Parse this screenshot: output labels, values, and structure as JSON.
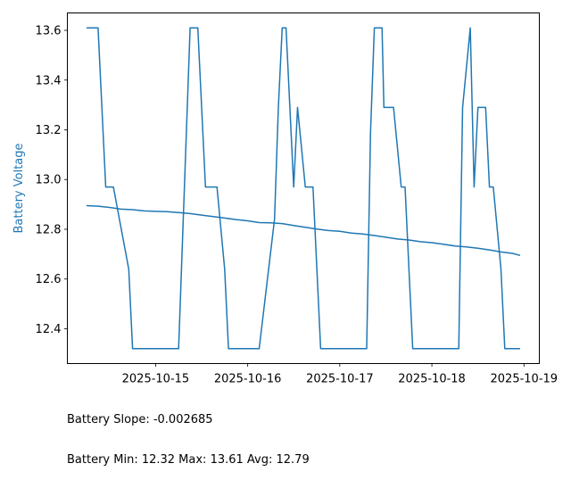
{
  "chart_data": {
    "type": "line",
    "title": "",
    "xlabel": "",
    "ylabel": "Battery Voltage",
    "ylabel_color": "#1f77b4",
    "x_ticks": [
      "2025-10-15",
      "2025-10-16",
      "2025-10-17",
      "2025-10-18",
      "2025-10-19"
    ],
    "y_ticks": [
      "12.4",
      "12.6",
      "12.8",
      "13.0",
      "13.2",
      "13.4",
      "13.6"
    ],
    "ylim": [
      12.26,
      13.67
    ],
    "xlim": [
      "2025-10-14 01:00",
      "2025-10-19 04:00"
    ],
    "grid": false,
    "series": [
      {
        "color": "#1f77b4",
        "points": [
          [
            "2025-10-14 06:00",
            13.61
          ],
          [
            "2025-10-14 09:00",
            13.61
          ],
          [
            "2025-10-14 11:00",
            12.97
          ],
          [
            "2025-10-14 13:00",
            12.97
          ],
          [
            "2025-10-14 17:00",
            12.64
          ],
          [
            "2025-10-14 18:00",
            12.32
          ],
          [
            "2025-10-15 06:00",
            12.32
          ],
          [
            "2025-10-15 09:00",
            13.61
          ],
          [
            "2025-10-15 11:00",
            13.61
          ],
          [
            "2025-10-15 13:00",
            12.97
          ],
          [
            "2025-10-15 16:00",
            12.97
          ],
          [
            "2025-10-15 18:00",
            12.64
          ],
          [
            "2025-10-15 19:00",
            12.32
          ],
          [
            "2025-10-16 03:00",
            12.32
          ],
          [
            "2025-10-16 07:00",
            12.84
          ],
          [
            "2025-10-16 08:00",
            13.29
          ],
          [
            "2025-10-16 09:00",
            13.61
          ],
          [
            "2025-10-16 10:00",
            13.61
          ],
          [
            "2025-10-16 12:00",
            12.97
          ],
          [
            "2025-10-16 13:00",
            13.29
          ],
          [
            "2025-10-16 15:00",
            12.97
          ],
          [
            "2025-10-16 17:00",
            12.97
          ],
          [
            "2025-10-16 19:00",
            12.32
          ],
          [
            "2025-10-17 07:00",
            12.32
          ],
          [
            "2025-10-17 08:00",
            13.19
          ],
          [
            "2025-10-17 09:00",
            13.61
          ],
          [
            "2025-10-17 11:00",
            13.61
          ],
          [
            "2025-10-17 11:30",
            13.29
          ],
          [
            "2025-10-17 14:00",
            13.29
          ],
          [
            "2025-10-17 16:00",
            12.97
          ],
          [
            "2025-10-17 17:00",
            12.97
          ],
          [
            "2025-10-17 19:00",
            12.32
          ],
          [
            "2025-10-18 07:00",
            12.32
          ],
          [
            "2025-10-18 08:00",
            13.29
          ],
          [
            "2025-10-18 10:00",
            13.61
          ],
          [
            "2025-10-18 11:00",
            12.97
          ],
          [
            "2025-10-18 12:00",
            13.29
          ],
          [
            "2025-10-18 14:00",
            13.29
          ],
          [
            "2025-10-18 15:00",
            12.97
          ],
          [
            "2025-10-18 16:00",
            12.97
          ],
          [
            "2025-10-18 18:00",
            12.64
          ],
          [
            "2025-10-18 19:00",
            12.32
          ],
          [
            "2025-10-18 23:00",
            12.32
          ]
        ]
      },
      {
        "color": "#1f77b4",
        "points": [
          [
            "2025-10-14 06:00",
            12.895
          ],
          [
            "2025-10-14 09:00",
            12.893
          ],
          [
            "2025-10-14 12:00",
            12.888
          ],
          [
            "2025-10-14 15:00",
            12.881
          ],
          [
            "2025-10-14 18:00",
            12.879
          ],
          [
            "2025-10-14 21:00",
            12.874
          ],
          [
            "2025-10-15 00:00",
            12.872
          ],
          [
            "2025-10-15 03:00",
            12.871
          ],
          [
            "2025-10-15 06:00",
            12.867
          ],
          [
            "2025-10-15 09:00",
            12.863
          ],
          [
            "2025-10-15 12:00",
            12.857
          ],
          [
            "2025-10-15 15:00",
            12.851
          ],
          [
            "2025-10-15 18:00",
            12.845
          ],
          [
            "2025-10-15 21:00",
            12.839
          ],
          [
            "2025-10-16 00:00",
            12.834
          ],
          [
            "2025-10-16 03:00",
            12.827
          ],
          [
            "2025-10-16 06:00",
            12.826
          ],
          [
            "2025-10-16 09:00",
            12.823
          ],
          [
            "2025-10-16 12:00",
            12.815
          ],
          [
            "2025-10-16 15:00",
            12.808
          ],
          [
            "2025-10-16 18:00",
            12.801
          ],
          [
            "2025-10-16 21:00",
            12.795
          ],
          [
            "2025-10-17 00:00",
            12.792
          ],
          [
            "2025-10-17 03:00",
            12.785
          ],
          [
            "2025-10-17 06:00",
            12.781
          ],
          [
            "2025-10-17 09:00",
            12.775
          ],
          [
            "2025-10-17 12:00",
            12.768
          ],
          [
            "2025-10-17 15:00",
            12.761
          ],
          [
            "2025-10-17 18:00",
            12.757
          ],
          [
            "2025-10-17 21:00",
            12.75
          ],
          [
            "2025-10-18 00:00",
            12.746
          ],
          [
            "2025-10-18 03:00",
            12.74
          ],
          [
            "2025-10-18 06:00",
            12.733
          ],
          [
            "2025-10-18 09:00",
            12.729
          ],
          [
            "2025-10-18 12:00",
            12.724
          ],
          [
            "2025-10-18 15:00",
            12.717
          ],
          [
            "2025-10-18 18:00",
            12.709
          ],
          [
            "2025-10-18 21:00",
            12.703
          ],
          [
            "2025-10-18 23:00",
            12.695
          ]
        ]
      }
    ]
  },
  "stats": {
    "slope_text": "Battery Slope: -0.002685",
    "minmax_text": "Battery Min: 12.32 Max: 13.61 Avg: 12.79"
  }
}
